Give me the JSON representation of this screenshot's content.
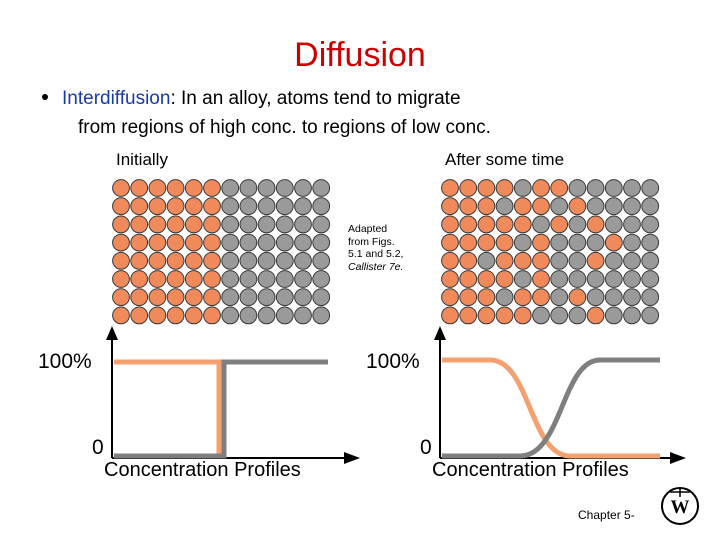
{
  "slide": {
    "title": "Diffusion",
    "bullet_term": "Interdiffusion",
    "bullet_rest": ":  In an alloy, atoms tend to migrate",
    "bullet_line2": "from regions of high conc. to regions of low conc.",
    "label_initial": "Initially",
    "label_after": "After some time",
    "caption": {
      "line1": "Adapted",
      "line2": "from Figs.",
      "line3": "5.1 and 5.2,",
      "line4": "Callister 7e."
    },
    "footer": "Chapter 5-",
    "logo_icon": "wiley-logo-icon"
  },
  "profiles": {
    "left": {
      "y_top": "100%",
      "y_bottom": "0",
      "title": "Concentration Profiles"
    },
    "right": {
      "y_top": "100%",
      "y_bottom": "0",
      "title": "Concentration Profiles"
    }
  },
  "colors": {
    "title": "#cc0000",
    "term": "#1a3aa8",
    "atom_orange": "#f08a5b",
    "atom_gray": "#9a9a9a",
    "curve_orange": "#f4a070",
    "curve_gray": "#7f7f7f"
  },
  "atom_grids": {
    "rows": 8,
    "cols": 12,
    "initial": [
      "OOOOOOGGGGGG",
      "OOOOOOGGGGGG",
      "OOOOOOGGGGGG",
      "OOOOOOGGGGGG",
      "OOOOOOGGGGGG",
      "OOOOOOGGGGGG",
      "OOOOOOGGGGGG",
      "OOOOOOGGGGGG"
    ],
    "after": [
      "OOOOGOOGGGGG",
      "OOOGOOGOGGGG",
      "OOOOOGOGOGGG",
      "OOOOGOGGGOGG",
      "OOGOOOGGOGGG",
      "OOOOGOGGGGGG",
      "OOOGOOGOGGGG",
      "OOOOOGGGOGGG"
    ]
  }
}
